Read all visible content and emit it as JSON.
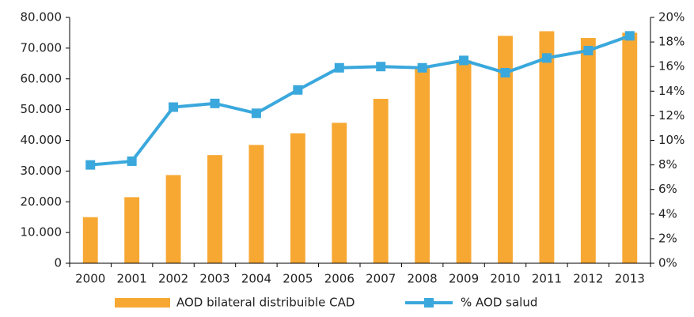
{
  "chart_data": {
    "type": "bar",
    "categories": [
      "2000",
      "2001",
      "2002",
      "2003",
      "2004",
      "2005",
      "2006",
      "2007",
      "2008",
      "2009",
      "2010",
      "2011",
      "2012",
      "2013"
    ],
    "series": [
      {
        "name": "AOD bilateral distribuible CAD",
        "type": "bar",
        "color": "#f7a833",
        "values": [
          15000,
          21500,
          28700,
          35200,
          38500,
          42300,
          45700,
          53500,
          63500,
          66000,
          74000,
          75500,
          73300,
          75000
        ]
      },
      {
        "name": "% AOD salud",
        "type": "line",
        "axis": "y2",
        "color": "#3aa8dc",
        "values": [
          8.0,
          8.3,
          12.7,
          13.0,
          12.2,
          14.1,
          15.9,
          16.0,
          15.9,
          16.5,
          15.5,
          16.7,
          17.3,
          18.5
        ]
      }
    ],
    "ylim": [
      0,
      80000
    ],
    "yticks": [
      0,
      {
        "value": 10000,
        "label": "10.000"
      },
      {
        "value": 20000,
        "label": "20.000"
      },
      {
        "value": 30000,
        "label": "30.000"
      },
      {
        "value": 40000,
        "label": "40.000"
      },
      {
        "value": 50000,
        "label": "50.000"
      },
      {
        "value": 60000,
        "label": "60.000"
      },
      {
        "value": 70000,
        "label": "70.000"
      },
      {
        "value": 80000,
        "label": "80.000"
      }
    ],
    "y2lim": [
      0,
      20
    ],
    "y2ticks": [
      {
        "value": 0,
        "label": "0%"
      },
      {
        "value": 2,
        "label": "2%"
      },
      {
        "value": 4,
        "label": "4%"
      },
      {
        "value": 6,
        "label": "6%"
      },
      {
        "value": 8,
        "label": "8%"
      },
      {
        "value": 10,
        "label": "10%"
      },
      {
        "value": 12,
        "label": "12%"
      },
      {
        "value": 14,
        "label": "14%"
      },
      {
        "value": 16,
        "label": "16%"
      },
      {
        "value": 18,
        "label": "18%"
      },
      {
        "value": 20,
        "label": "20%"
      }
    ],
    "grid": false,
    "legend": "bottom"
  }
}
